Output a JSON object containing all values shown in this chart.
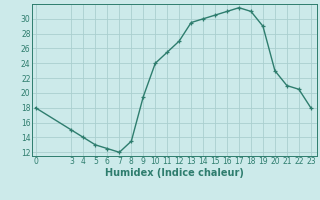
{
  "x": [
    0,
    3,
    4,
    5,
    6,
    7,
    8,
    9,
    10,
    11,
    12,
    13,
    14,
    15,
    16,
    17,
    18,
    19,
    20,
    21,
    22,
    23
  ],
  "y": [
    18,
    15,
    14,
    13,
    12.5,
    12,
    13.5,
    19.5,
    24,
    25.5,
    27,
    29.5,
    30,
    30.5,
    31,
    31.5,
    31,
    29,
    23,
    21,
    20.5,
    18
  ],
  "line_color": "#2e7d6e",
  "marker": "+",
  "bg_color": "#cceaea",
  "grid_color": "#aacfcf",
  "xlabel": "Humidex (Indice chaleur)",
  "ylim": [
    11.5,
    32
  ],
  "xlim": [
    -0.3,
    23.5
  ],
  "yticks": [
    12,
    14,
    16,
    18,
    20,
    22,
    24,
    26,
    28,
    30
  ],
  "xticks": [
    0,
    3,
    4,
    5,
    6,
    7,
    8,
    9,
    10,
    11,
    12,
    13,
    14,
    15,
    16,
    17,
    18,
    19,
    20,
    21,
    22,
    23
  ],
  "font_color": "#2e7d6e",
  "tick_fontsize": 5.5,
  "xlabel_fontsize": 7.0,
  "linewidth": 1.0,
  "markersize": 3.5,
  "markeredgewidth": 0.9
}
